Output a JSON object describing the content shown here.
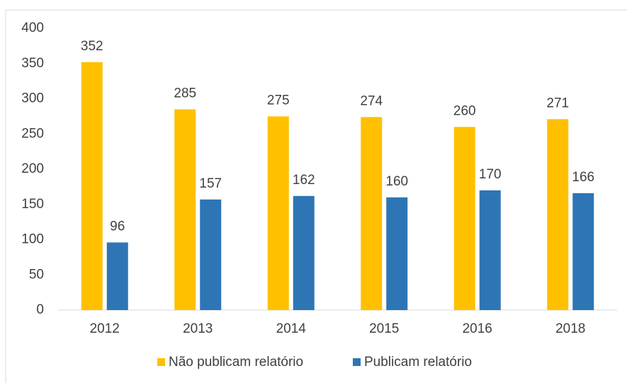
{
  "chart_data": {
    "type": "bar",
    "categories": [
      "2012",
      "2013",
      "2014",
      "2015",
      "2016",
      "2018"
    ],
    "series": [
      {
        "name": "Não publicam relatório",
        "color": "#FFC000",
        "values": [
          352,
          285,
          275,
          274,
          260,
          271
        ]
      },
      {
        "name": "Publicam relatório",
        "color": "#2E75B6",
        "values": [
          96,
          157,
          162,
          160,
          170,
          166
        ]
      }
    ],
    "ylim": [
      0,
      400
    ],
    "yticks": [
      0,
      50,
      100,
      150,
      200,
      250,
      300,
      350,
      400
    ],
    "grid": false,
    "legend": "bottom"
  }
}
